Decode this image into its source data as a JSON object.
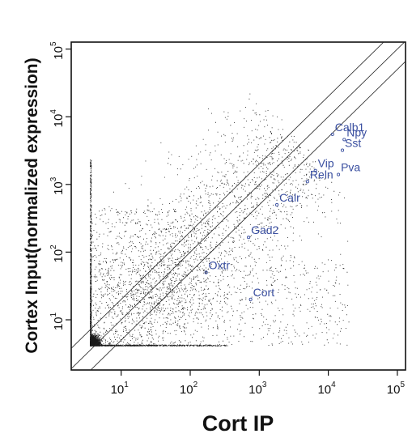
{
  "chart_data": {
    "type": "scatter",
    "title": "",
    "xlabel": "Cort IP",
    "ylabel": "Cortex Input(normalized expression)",
    "xscale": "log",
    "yscale": "log",
    "xlim": [
      2,
      150000
    ],
    "ylim": [
      2,
      150000
    ],
    "x_ticks": [
      {
        "base": "10",
        "exp": "1",
        "value": 10
      },
      {
        "base": "10",
        "exp": "2",
        "value": 100
      },
      {
        "base": "10",
        "exp": "3",
        "value": 1000
      },
      {
        "base": "10",
        "exp": "4",
        "value": 10000
      },
      {
        "base": "10",
        "exp": "5",
        "value": 100000
      }
    ],
    "y_ticks": [
      {
        "base": "10",
        "exp": "1",
        "value": 10
      },
      {
        "base": "10",
        "exp": "2",
        "value": 100
      },
      {
        "base": "10",
        "exp": "3",
        "value": 1000
      },
      {
        "base": "10",
        "exp": "4",
        "value": 10000
      },
      {
        "base": "10",
        "exp": "5",
        "value": 100000
      }
    ],
    "reference_lines": [
      {
        "fold": 0.5
      },
      {
        "fold": 1
      },
      {
        "fold": 2
      }
    ],
    "highlighted_genes": [
      {
        "name": "Calb1",
        "x": 11500,
        "y": 5500
      },
      {
        "name": "Npy",
        "x": 17000,
        "y": 4600
      },
      {
        "name": "Sst",
        "x": 16000,
        "y": 3200
      },
      {
        "name": "Pva",
        "x": 14000,
        "y": 1400
      },
      {
        "name": "Vip",
        "x": 6500,
        "y": 1600
      },
      {
        "name": "Reln",
        "x": 5000,
        "y": 1100
      },
      {
        "name": "Calr",
        "x": 1800,
        "y": 500
      },
      {
        "name": "Gad2",
        "x": 700,
        "y": 165
      },
      {
        "name": "Oxtr",
        "x": 170,
        "y": 50
      },
      {
        "name": "Cort",
        "x": 750,
        "y": 20
      }
    ],
    "grid": false,
    "legend": "none"
  }
}
